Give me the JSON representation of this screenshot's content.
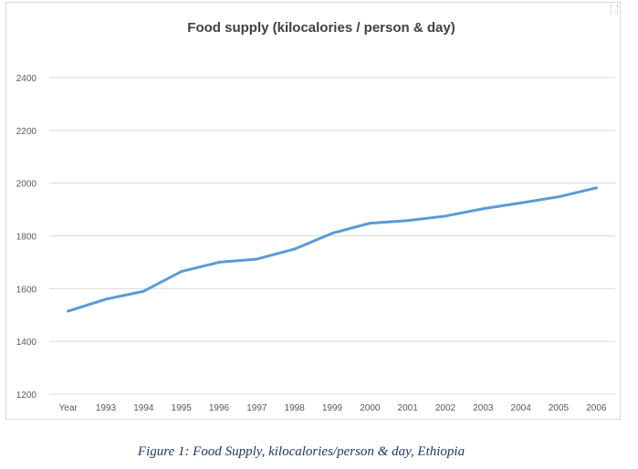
{
  "chart_data": {
    "type": "line",
    "title": "Food supply (kilocalories / person & day)",
    "xlabel": "",
    "ylabel": "",
    "categories": [
      "Year",
      "1993",
      "1994",
      "1995",
      "1996",
      "1997",
      "1998",
      "1999",
      "2000",
      "2001",
      "2002",
      "2003",
      "2004",
      "2005",
      "2006"
    ],
    "series": [
      {
        "values": [
          1515,
          1560,
          1590,
          1665,
          1700,
          1712,
          1750,
          1810,
          1848,
          1858,
          1875,
          1903,
          1925,
          1948,
          1982
        ]
      }
    ],
    "y_ticks": [
      "1200",
      "1400",
      "1600",
      "1800",
      "2000",
      "2200",
      "2400"
    ],
    "ylim": [
      1200,
      2400
    ],
    "grid": true,
    "line_color": "#5b9bd5",
    "grid_color": "#d9d9d9"
  },
  "caption": "Figure 1: Food Supply, kilocalories/person & day, Ethiopia"
}
